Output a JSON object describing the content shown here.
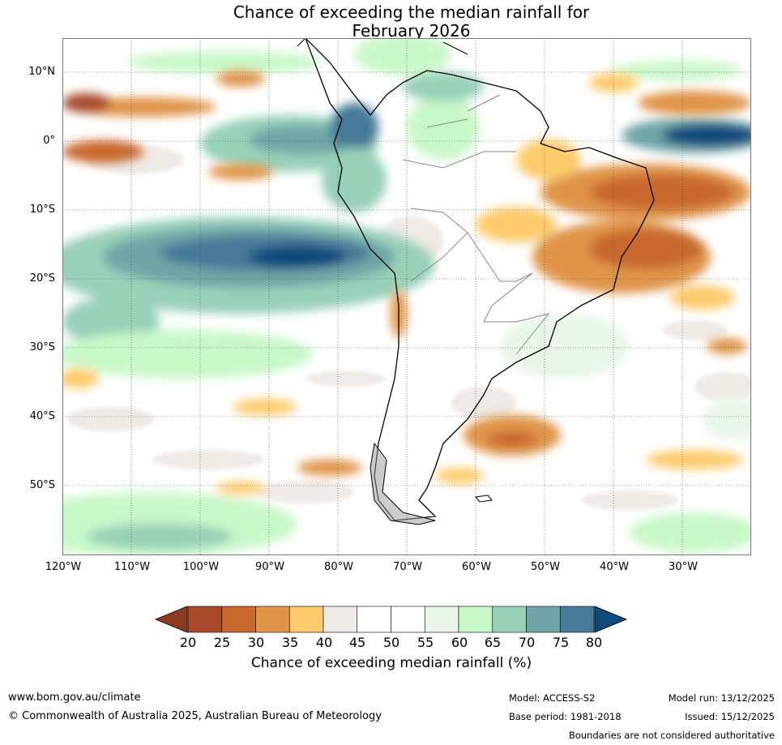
{
  "title": {
    "line1": "Chance of exceeding the median rainfall for",
    "line2": "February 2026"
  },
  "map": {
    "region": "South America",
    "lat_labels": [
      "10°N",
      "0°",
      "10°S",
      "20°S",
      "30°S",
      "40°S",
      "50°S"
    ],
    "lon_labels": [
      "120°W",
      "110°W",
      "100°W",
      "90°W",
      "80°W",
      "70°W",
      "60°W",
      "50°W",
      "40°W",
      "30°W"
    ],
    "lat_range": [
      -60,
      15
    ],
    "lon_range": [
      -120,
      -20
    ]
  },
  "colorbar": {
    "title": "Chance of exceeding median rainfall (%)",
    "ticks": [
      "20",
      "25",
      "30",
      "35",
      "40",
      "45",
      "50",
      "55",
      "60",
      "65",
      "70",
      "75",
      "80"
    ],
    "colors": [
      "#a8492a",
      "#c9672f",
      "#e09448",
      "#fdcb6c",
      "#eeeae6",
      "#ffffff",
      "#ffffff",
      "#e8f5e8",
      "#c8f8c8",
      "#98d0b8",
      "#6fa5a8",
      "#457a98"
    ],
    "under_color": "#8c3a22",
    "over_color": "#0f4a7c"
  },
  "footer": {
    "website": "www.bom.gov.au/climate",
    "copyright": "© Commonwealth of Australia 2025, Australian Bureau of Meteorology",
    "model": "Model: ACCESS-S2",
    "base_period": "Base period: 1981-2018",
    "model_run": "Model run: 13/12/2025",
    "issued": "Issued: 15/12/2025",
    "boundaries_note": "Boundaries are not considered authoritative"
  }
}
